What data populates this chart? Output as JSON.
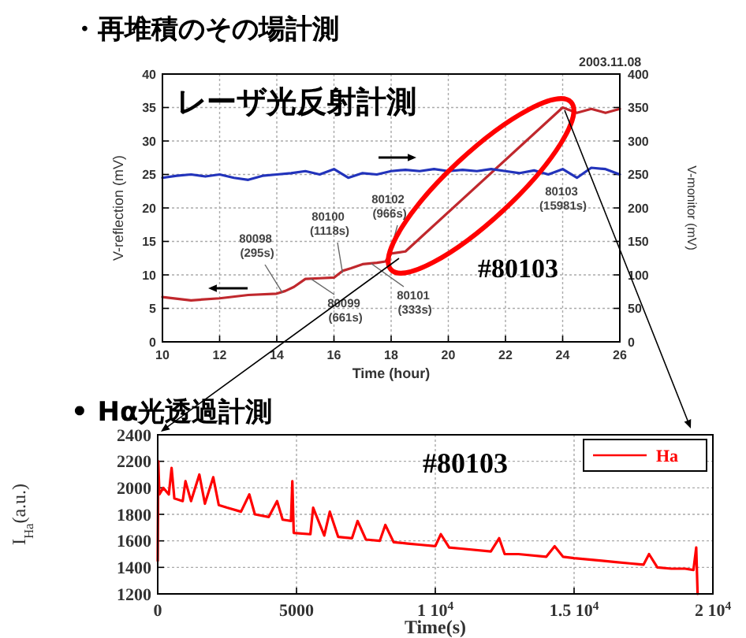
{
  "chart_data": [
    {
      "type": "line",
      "title": "・再堆積のその場計測",
      "subtitle": "レーザ光反射計測",
      "xlabel": "Time (hour)",
      "ylabel": "V-reflection (mV)",
      "y2label": "V-monitor (mV)",
      "xlim": [
        10,
        26
      ],
      "xticks": [
        10,
        12,
        14,
        16,
        18,
        20,
        22,
        24,
        26
      ],
      "ylim": [
        0,
        40
      ],
      "yticks": [
        0,
        5,
        10,
        15,
        20,
        25,
        30,
        35,
        40
      ],
      "y2lim": [
        0,
        400
      ],
      "y2ticks": [
        0,
        50,
        100,
        150,
        200,
        250,
        300,
        350,
        400
      ],
      "grid": true,
      "series": [
        {
          "color": "#c0282d",
          "x": [
            10,
            11,
            12,
            13,
            14,
            14.3,
            14.6,
            15,
            15.5,
            16,
            16.3,
            16.6,
            17,
            17.5,
            17.8,
            18,
            18.5,
            24,
            24.5,
            25,
            25.5,
            26
          ],
          "values": [
            6.7,
            6.2,
            6.5,
            7,
            7.2,
            7.6,
            8.2,
            9.4,
            9.5,
            9.6,
            10.6,
            11,
            11.6,
            11.8,
            12,
            13.2,
            13.5,
            35,
            34.2,
            34.8,
            34.2,
            34.8
          ]
        },
        {
          "color": "#2233bb",
          "axis": "y2",
          "x": [
            10,
            10.5,
            11,
            11.5,
            12,
            12.5,
            13,
            13.5,
            14,
            14.5,
            15,
            15.5,
            16,
            16.5,
            17,
            17.5,
            18,
            18.5,
            19,
            19.5,
            20,
            20.5,
            21,
            21.5,
            22,
            22.5,
            23,
            23.5,
            24,
            24.5,
            25,
            25.5,
            26
          ],
          "values": [
            245,
            248,
            250,
            247,
            250,
            245,
            242,
            248,
            250,
            252,
            255,
            250,
            258,
            245,
            252,
            250,
            255,
            257,
            255,
            258,
            255,
            257,
            255,
            258,
            255,
            252,
            256,
            250,
            258,
            245,
            260,
            258,
            250
          ]
        }
      ],
      "annotations": [
        "2003.11.08",
        "#80103",
        {
          "text": "80098 (295s)",
          "x": 14.2,
          "y": 7.3
        },
        {
          "text": "80099 (661s)",
          "x": 15.2,
          "y": 9.4
        },
        {
          "text": "80100 (1118s)",
          "x": 16.3,
          "y": 10.3
        },
        {
          "text": "80101 (333s)",
          "x": 17.3,
          "y": 11.7
        },
        {
          "text": "80102 (966s)",
          "x": 17.9,
          "y": 12.3
        },
        "80103 (15981s)"
      ]
    },
    {
      "type": "line",
      "title": "• Hα光透過計測",
      "xlabel": "Time(s)",
      "ylabel": "I$_{Ha}$(a.u.)",
      "xlim": [
        0,
        20000
      ],
      "xticks": [
        0,
        5000,
        {
          "value": 10000,
          "label": "1 10$^{4}$"
        },
        {
          "value": 15000,
          "label": "1.5 10$^{4}$"
        },
        {
          "value": 20000,
          "label": "2 10$^{4}$"
        }
      ],
      "ylim": [
        1200,
        2400
      ],
      "yticks": [
        1200,
        1400,
        1600,
        1800,
        2000,
        2200,
        2400
      ],
      "grid": true,
      "legend": "top right",
      "series": [
        {
          "name": "Ha",
          "color": "#ff0000",
          "x": [
            0,
            20,
            60,
            200,
            400,
            500,
            600,
            900,
            1000,
            1200,
            1500,
            1700,
            2000,
            2200,
            2500,
            3000,
            3300,
            3500,
            4000,
            4300,
            4500,
            4800,
            4850,
            4900,
            5500,
            5600,
            6000,
            6200,
            6500,
            7000,
            7200,
            7500,
            8000,
            8200,
            8500,
            9000,
            9500,
            10000,
            10200,
            10500,
            11000,
            12000,
            12300,
            12500,
            13000,
            14000,
            14300,
            14600,
            15000,
            16000,
            16500,
            17000,
            17500,
            17700,
            18000,
            18500,
            19000,
            19300,
            19400,
            19450
          ],
          "values": [
            1450,
            2200,
            1950,
            2000,
            1950,
            2150,
            1920,
            1900,
            2050,
            1900,
            2100,
            1880,
            2080,
            1870,
            1850,
            1820,
            1950,
            1800,
            1780,
            1900,
            1760,
            1750,
            2050,
            1660,
            1650,
            1850,
            1640,
            1820,
            1630,
            1620,
            1750,
            1610,
            1600,
            1720,
            1590,
            1580,
            1570,
            1560,
            1650,
            1550,
            1540,
            1520,
            1620,
            1500,
            1500,
            1480,
            1560,
            1480,
            1470,
            1450,
            1440,
            1430,
            1420,
            1500,
            1400,
            1390,
            1390,
            1380,
            1550,
            1200
          ]
        }
      ],
      "annotations": [
        "#80103"
      ]
    }
  ]
}
